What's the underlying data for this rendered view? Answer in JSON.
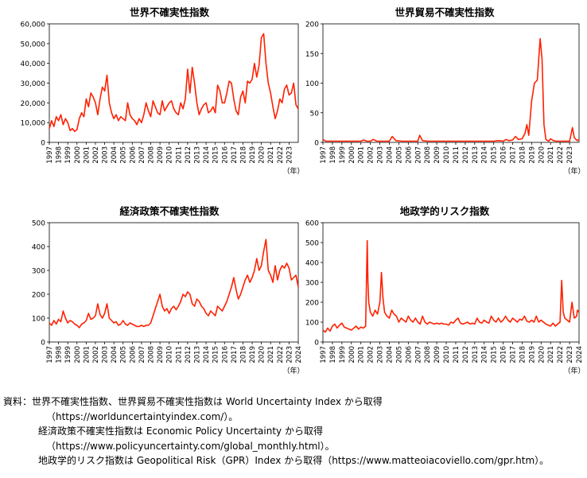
{
  "chart_data": [
    {
      "type": "line",
      "title": "世界不確実性指数",
      "xlabel": "（年）",
      "ylabel": "",
      "ylim": [
        0,
        60000
      ],
      "xlim": [
        1997,
        2024
      ],
      "y_ticks": [
        0,
        10000,
        20000,
        30000,
        40000,
        50000,
        60000
      ],
      "y_tick_labels": [
        "0",
        "10,000",
        "20,000",
        "30,000",
        "40,000",
        "50,000",
        "60,000"
      ],
      "x_tick_labels": [
        "1997",
        "1998",
        "1999",
        "2000",
        "2001",
        "2002",
        "2003",
        "2004",
        "2005",
        "2006",
        "2007",
        "2008",
        "2009",
        "2010",
        "2011",
        "2012",
        "2013",
        "2014",
        "2015",
        "2016",
        "2017",
        "2018",
        "2019",
        "2020",
        "2021",
        "2022",
        "2023"
      ],
      "color": "#ff2000",
      "grid": false,
      "series": [
        {
          "x": [
            1997.0,
            1997.25,
            1997.5,
            1997.75,
            1998.0,
            1998.25,
            1998.5,
            1998.75,
            1999.0,
            1999.25,
            1999.5,
            1999.75,
            2000.0,
            2000.25,
            2000.5,
            2000.75,
            2001.0,
            2001.25,
            2001.5,
            2001.75,
            2002.0,
            2002.25,
            2002.5,
            2002.75,
            2003.0,
            2003.25,
            2003.5,
            2003.75,
            2004.0,
            2004.25,
            2004.5,
            2004.75,
            2005.0,
            2005.25,
            2005.5,
            2005.75,
            2006.0,
            2006.25,
            2006.5,
            2006.75,
            2007.0,
            2007.25,
            2007.5,
            2007.75,
            2008.0,
            2008.25,
            2008.5,
            2008.75,
            2009.0,
            2009.25,
            2009.5,
            2009.75,
            2010.0,
            2010.25,
            2010.5,
            2010.75,
            2011.0,
            2011.25,
            2011.5,
            2011.75,
            2012.0,
            2012.25,
            2012.5,
            2012.75,
            2013.0,
            2013.25,
            2013.5,
            2013.75,
            2014.0,
            2014.25,
            2014.5,
            2014.75,
            2015.0,
            2015.25,
            2015.5,
            2015.75,
            2016.0,
            2016.25,
            2016.5,
            2016.75,
            2017.0,
            2017.25,
            2017.5,
            2017.75,
            2018.0,
            2018.25,
            2018.5,
            2018.75,
            2019.0,
            2019.25,
            2019.5,
            2019.75,
            2020.0,
            2020.25,
            2020.5,
            2020.75,
            2021.0,
            2021.25,
            2021.5,
            2021.75,
            2022.0,
            2022.25,
            2022.5,
            2022.75,
            2023.0,
            2023.25,
            2023.5,
            2023.75,
            2024.0
          ],
          "y": [
            7000,
            11000,
            8000,
            13000,
            11000,
            14000,
            9000,
            12000,
            10000,
            6000,
            7000,
            5500,
            6500,
            12000,
            15000,
            13000,
            22000,
            18000,
            25000,
            23000,
            20000,
            14000,
            22000,
            28000,
            26000,
            34000,
            20000,
            15000,
            12000,
            14000,
            11000,
            13000,
            12000,
            11000,
            20000,
            14000,
            12000,
            11000,
            9000,
            12000,
            10000,
            14000,
            20000,
            16000,
            13000,
            21000,
            18000,
            15000,
            14000,
            21000,
            16000,
            18000,
            20000,
            21000,
            17000,
            15000,
            14000,
            20000,
            17000,
            22000,
            37000,
            25000,
            38000,
            30000,
            20000,
            14000,
            17000,
            19000,
            20000,
            15000,
            16000,
            18000,
            15000,
            29000,
            26000,
            20000,
            20000,
            25000,
            31000,
            30000,
            22000,
            16000,
            14000,
            23000,
            26000,
            20000,
            31000,
            30000,
            32000,
            40000,
            33000,
            39000,
            53000,
            55000,
            40000,
            30000,
            25000,
            18000,
            12000,
            16000,
            22000,
            20000,
            27000,
            29000,
            24000,
            25000,
            30000,
            19000,
            17000
          ]
        }
      ]
    },
    {
      "type": "line",
      "title": "世界貿易不確実性指数",
      "xlabel": "（年）",
      "ylabel": "",
      "ylim": [
        0,
        200
      ],
      "xlim": [
        1997,
        2024
      ],
      "y_ticks": [
        0,
        50,
        100,
        150,
        200
      ],
      "y_tick_labels": [
        "0",
        "50",
        "100",
        "150",
        "200"
      ],
      "x_tick_labels": [
        "1997",
        "1998",
        "1999",
        "2000",
        "2001",
        "2002",
        "2003",
        "2004",
        "2005",
        "2006",
        "2007",
        "2008",
        "2009",
        "2010",
        "2011",
        "2012",
        "2013",
        "2014",
        "2015",
        "2016",
        "2017",
        "2018",
        "2019",
        "2020",
        "2021",
        "2022",
        "2023"
      ],
      "color": "#ff2000",
      "grid": false,
      "series": [
        {
          "x": [
            1997.0,
            1997.3,
            1998.0,
            1998.6,
            1999.2,
            1999.9,
            2000.5,
            2001.0,
            2001.3,
            2001.6,
            2002.0,
            2002.3,
            2002.7,
            2003.2,
            2003.7,
            2004.0,
            2004.3,
            2004.7,
            2005.3,
            2006.0,
            2006.7,
            2007.0,
            2007.2,
            2007.5,
            2008.0,
            2009.0,
            2010.0,
            2011.0,
            2012.0,
            2013.0,
            2014.0,
            2015.0,
            2015.5,
            2016.0,
            2016.3,
            2016.6,
            2017.0,
            2017.3,
            2017.6,
            2018.0,
            2018.3,
            2018.5,
            2018.7,
            2019.0,
            2019.3,
            2019.6,
            2019.9,
            2020.1,
            2020.3,
            2020.5,
            2020.8,
            2021.0,
            2021.3,
            2021.6,
            2022.0,
            2022.3,
            2022.6,
            2023.0,
            2023.3,
            2023.5,
            2023.8,
            2024.0
          ],
          "y": [
            5,
            2,
            2,
            2,
            2,
            2,
            2,
            2,
            4,
            2,
            2,
            5,
            2,
            2,
            2,
            2,
            10,
            3,
            2,
            2,
            2,
            2,
            12,
            3,
            2,
            2,
            2,
            2,
            2,
            2,
            2,
            2,
            3,
            2,
            5,
            3,
            4,
            10,
            5,
            6,
            15,
            30,
            12,
            70,
            100,
            105,
            175,
            140,
            30,
            5,
            2,
            6,
            3,
            2,
            2,
            2,
            2,
            2,
            25,
            8,
            3,
            5
          ]
        }
      ]
    },
    {
      "type": "line",
      "title": "経済政策不確実性指数",
      "xlabel": "（年）",
      "ylabel": "",
      "ylim": [
        0,
        500
      ],
      "xlim": [
        1997,
        2024
      ],
      "y_ticks": [
        0,
        100,
        200,
        300,
        400,
        500
      ],
      "y_tick_labels": [
        "0",
        "100",
        "200",
        "300",
        "400",
        "500"
      ],
      "x_tick_labels": [
        "1997",
        "1998",
        "1999",
        "2000",
        "2001",
        "2002",
        "2003",
        "2004",
        "2005",
        "2006",
        "2007",
        "2008",
        "2009",
        "2010",
        "2011",
        "2012",
        "2013",
        "2014",
        "2015",
        "2016",
        "2017",
        "2018",
        "2019",
        "2020",
        "2021",
        "2022",
        "2023",
        "2024"
      ],
      "color": "#ff2000",
      "grid": false,
      "series": [
        {
          "x": [
            1997.0,
            1997.25,
            1997.5,
            1997.75,
            1998.0,
            1998.25,
            1998.5,
            1998.75,
            1999.0,
            1999.25,
            1999.5,
            1999.75,
            2000.0,
            2000.25,
            2000.5,
            2000.75,
            2001.0,
            2001.25,
            2001.5,
            2001.75,
            2002.0,
            2002.25,
            2002.5,
            2002.75,
            2003.0,
            2003.25,
            2003.5,
            2003.75,
            2004.0,
            2004.25,
            2004.5,
            2004.75,
            2005.0,
            2005.25,
            2005.5,
            2005.75,
            2006.0,
            2006.25,
            2006.5,
            2006.75,
            2007.0,
            2007.25,
            2007.5,
            2007.75,
            2008.0,
            2008.25,
            2008.5,
            2008.75,
            2009.0,
            2009.25,
            2009.5,
            2009.75,
            2010.0,
            2010.25,
            2010.5,
            2010.75,
            2011.0,
            2011.25,
            2011.5,
            2011.75,
            2012.0,
            2012.25,
            2012.5,
            2012.75,
            2013.0,
            2013.25,
            2013.5,
            2013.75,
            2014.0,
            2014.25,
            2014.5,
            2014.75,
            2015.0,
            2015.25,
            2015.5,
            2015.75,
            2016.0,
            2016.25,
            2016.5,
            2016.75,
            2017.0,
            2017.25,
            2017.5,
            2017.75,
            2018.0,
            2018.25,
            2018.5,
            2018.75,
            2019.0,
            2019.25,
            2019.5,
            2019.75,
            2020.0,
            2020.25,
            2020.5,
            2020.75,
            2021.0,
            2021.25,
            2021.5,
            2021.75,
            2022.0,
            2022.25,
            2022.5,
            2022.75,
            2023.0,
            2023.25,
            2023.5,
            2023.75,
            2024.0
          ],
          "y": [
            80,
            70,
            90,
            75,
            95,
            85,
            130,
            100,
            80,
            90,
            85,
            75,
            70,
            60,
            75,
            80,
            90,
            120,
            95,
            100,
            110,
            160,
            115,
            100,
            120,
            160,
            100,
            90,
            80,
            85,
            70,
            75,
            90,
            75,
            70,
            80,
            75,
            70,
            65,
            65,
            70,
            65,
            70,
            70,
            80,
            110,
            140,
            170,
            200,
            150,
            130,
            140,
            120,
            140,
            150,
            135,
            150,
            170,
            200,
            190,
            210,
            200,
            160,
            150,
            180,
            170,
            150,
            140,
            120,
            110,
            130,
            120,
            110,
            150,
            140,
            130,
            150,
            170,
            200,
            230,
            270,
            220,
            180,
            200,
            230,
            260,
            280,
            250,
            270,
            300,
            350,
            300,
            320,
            380,
            430,
            300,
            280,
            250,
            320,
            260,
            300,
            320,
            310,
            330,
            310,
            260,
            270,
            280,
            230
          ]
        }
      ]
    },
    {
      "type": "line",
      "title": "地政学的リスク指数",
      "xlabel": "（年）",
      "ylabel": "",
      "ylim": [
        0,
        600
      ],
      "xlim": [
        1997,
        2024
      ],
      "y_ticks": [
        0,
        100,
        200,
        300,
        400,
        500,
        600
      ],
      "y_tick_labels": [
        "0",
        "100",
        "200",
        "300",
        "400",
        "500",
        "600"
      ],
      "x_tick_labels": [
        "1997",
        "1998",
        "1999",
        "2000",
        "2001",
        "2002",
        "2003",
        "2004",
        "2005",
        "2006",
        "2007",
        "2008",
        "2009",
        "2010",
        "2011",
        "2012",
        "2013",
        "2014",
        "2015",
        "2016",
        "2017",
        "2018",
        "2019",
        "2020",
        "2021",
        "2022",
        "2023",
        "2024"
      ],
      "color": "#ff2000",
      "grid": false,
      "series": [
        {
          "x": [
            1997.0,
            1997.25,
            1997.5,
            1997.75,
            1998.0,
            1998.25,
            1998.5,
            1998.75,
            1999.0,
            1999.25,
            1999.5,
            1999.75,
            2000.0,
            2000.25,
            2000.5,
            2000.75,
            2001.0,
            2001.25,
            2001.5,
            2001.67,
            2001.75,
            2001.83,
            2002.0,
            2002.25,
            2002.5,
            2002.75,
            2003.0,
            2003.17,
            2003.33,
            2003.5,
            2003.75,
            2004.0,
            2004.25,
            2004.5,
            2004.75,
            2005.0,
            2005.25,
            2005.5,
            2005.75,
            2006.0,
            2006.25,
            2006.5,
            2006.75,
            2007.0,
            2007.25,
            2007.5,
            2007.75,
            2008.0,
            2008.25,
            2008.5,
            2008.75,
            2009.0,
            2009.25,
            2009.5,
            2009.75,
            2010.0,
            2010.25,
            2010.5,
            2010.75,
            2011.0,
            2011.25,
            2011.5,
            2011.75,
            2012.0,
            2012.25,
            2012.5,
            2012.75,
            2013.0,
            2013.25,
            2013.5,
            2013.75,
            2014.0,
            2014.25,
            2014.5,
            2014.75,
            2015.0,
            2015.25,
            2015.5,
            2015.75,
            2016.0,
            2016.25,
            2016.5,
            2016.75,
            2017.0,
            2017.25,
            2017.5,
            2017.75,
            2018.0,
            2018.25,
            2018.5,
            2018.75,
            2019.0,
            2019.25,
            2019.5,
            2019.75,
            2020.0,
            2020.25,
            2020.5,
            2020.75,
            2021.0,
            2021.25,
            2021.5,
            2021.75,
            2022.0,
            2022.17,
            2022.33,
            2022.5,
            2022.75,
            2023.0,
            2023.25,
            2023.5,
            2023.75,
            2023.83,
            2024.0
          ],
          "y": [
            60,
            50,
            70,
            55,
            80,
            90,
            70,
            85,
            95,
            75,
            70,
            65,
            60,
            70,
            80,
            65,
            75,
            70,
            80,
            510,
            300,
            200,
            150,
            130,
            160,
            140,
            200,
            350,
            220,
            150,
            130,
            120,
            160,
            140,
            130,
            100,
            120,
            110,
            100,
            130,
            110,
            100,
            120,
            100,
            90,
            130,
            100,
            90,
            100,
            95,
            90,
            95,
            90,
            95,
            90,
            90,
            85,
            100,
            95,
            110,
            120,
            95,
            90,
            95,
            100,
            90,
            95,
            90,
            120,
            100,
            95,
            110,
            100,
            95,
            130,
            110,
            100,
            120,
            100,
            110,
            130,
            110,
            100,
            120,
            110,
            100,
            115,
            110,
            130,
            105,
            100,
            110,
            100,
            130,
            100,
            110,
            100,
            90,
            85,
            80,
            95,
            80,
            90,
            100,
            310,
            150,
            120,
            110,
            100,
            200,
            120,
            130,
            160,
            150
          ]
        }
      ]
    }
  ],
  "notes": {
    "line1": "資料：世界不確実性指数、世界貿易不確実性指数は World Uncertainty Index から取得",
    "line2": "（https://worlduncertaintyindex.com/）。",
    "line3": "経済政策不確実性指数は Economic Policy Uncertainty から取得",
    "line4": "（https://www.policyuncertainty.com/global_monthly.html）。",
    "line5": "地政学的リスク指数は Geopolitical Risk（GPR）Index から取得（https://www.matteoiacoviello.com/gpr.htm）。"
  }
}
